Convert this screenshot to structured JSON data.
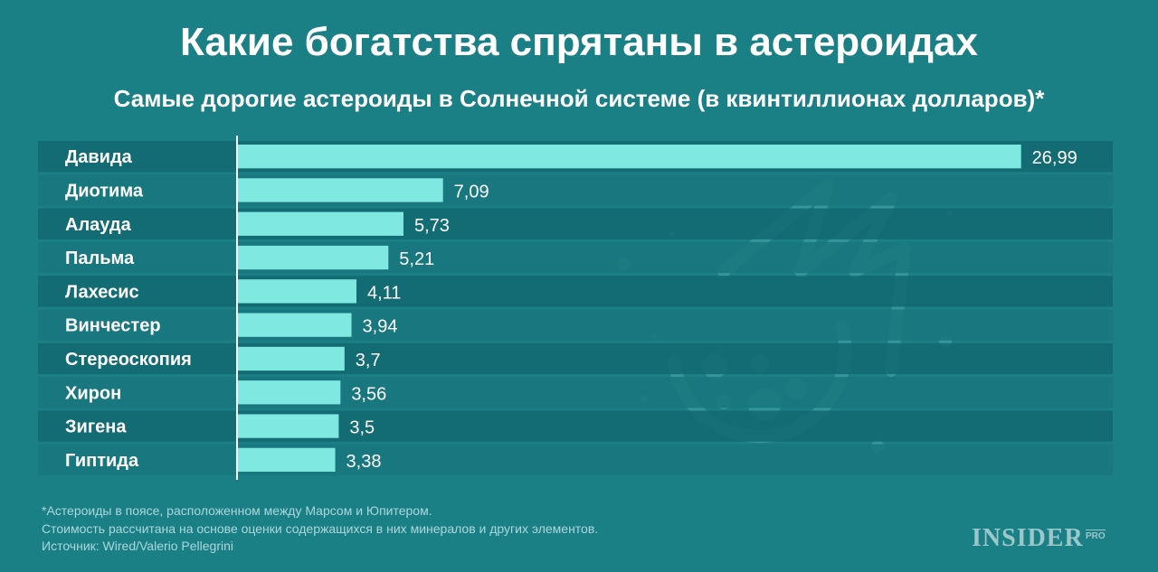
{
  "chart_data": {
    "type": "bar",
    "orientation": "horizontal",
    "title": "Какие богатства спрятаны в астероидах",
    "subtitle": "Самые дорогие астероиды в Солнечной системе (в квинтиллионах долларов)*",
    "categories": [
      "Давида",
      "Диотима",
      "Алауда",
      "Пальма",
      "Лахесис",
      "Винчестер",
      "Стереоскопия",
      "Хирон",
      "Зигена",
      "Гиптида"
    ],
    "values": [
      26.99,
      7.09,
      5.73,
      5.21,
      4.11,
      3.94,
      3.7,
      3.56,
      3.5,
      3.38
    ],
    "value_labels": [
      "26,99",
      "7,09",
      "5,73",
      "5,21",
      "4,11",
      "3,94",
      "3,7",
      "3,56",
      "3,5",
      "3,38"
    ],
    "xlim": [
      0,
      27
    ],
    "grid": false,
    "legend": "none"
  },
  "footnotes": {
    "line1": "*Астероиды в поясе, расположенном между Марсом и Юпитером.",
    "line2": "Стоимость рассчитана на основе оценки содержащихся в них минералов и других элементов.",
    "line3": "Источник: Wired/Valerio Pellegrini"
  },
  "brand": {
    "name": "INSIDER",
    "suffix": "PRO"
  },
  "colors": {
    "background": "#1b7f86",
    "bar": "#7fe8e0",
    "row_dark": "#136a72",
    "row_light": "#19777e",
    "text": "#ffffff"
  },
  "icons": [
    "asteroid-illustration-icon"
  ]
}
